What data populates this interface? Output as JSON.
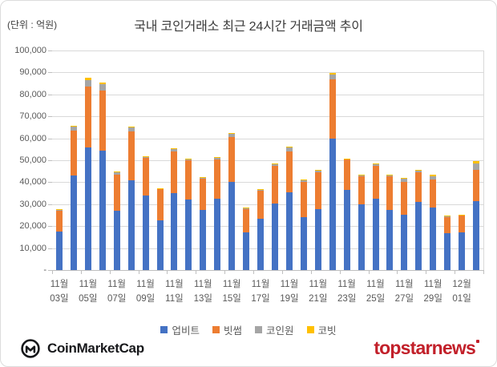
{
  "page": {
    "unit_label": "(단위 : 억원)",
    "title": "국내 코인거래소 최근 24시간 거래금액 추이"
  },
  "chart_data": {
    "type": "bar",
    "stacked": true,
    "title": "국내 코인거래소 최근 24시간 거래금액 추이",
    "unit": "억원",
    "ylim": [
      0,
      100000
    ],
    "ytick_interval": 10000,
    "ytick_labels_top_to_bottom": [
      "100,000",
      "90,000",
      "80,000",
      "70,000",
      "60,000",
      "50,000",
      "40,000",
      "30,000",
      "20,000",
      "10,000",
      "-"
    ],
    "grid": true,
    "legend_position": "bottom",
    "xtick_label_every": 2,
    "categories": [
      "11월 03일",
      "11월 04일",
      "11월 05일",
      "11월 06일",
      "11월 07일",
      "11월 08일",
      "11월 09일",
      "11월 10일",
      "11월 11일",
      "11월 12일",
      "11월 13일",
      "11월 14일",
      "11월 15일",
      "11월 16일",
      "11월 17일",
      "11월 18일",
      "11월 19일",
      "11월 20일",
      "11월 21일",
      "11월 22일",
      "11월 23일",
      "11월 24일",
      "11월 25일",
      "11월 26일",
      "11월 27일",
      "11월 28일",
      "11월 29일",
      "11월 30일",
      "12월 01일",
      "12월 02일"
    ],
    "series": [
      {
        "name": "업비트",
        "color": "#4472C4",
        "values": [
          17500,
          43000,
          55800,
          54500,
          27000,
          41000,
          33800,
          22800,
          35000,
          32000,
          27400,
          32600,
          40300,
          17000,
          23200,
          30200,
          35400,
          24100,
          27700,
          59800,
          36600,
          29900,
          32400,
          27500,
          25300,
          31100,
          28300,
          16700,
          17000,
          31400
        ]
      },
      {
        "name": "빗썸",
        "color": "#ED7D31",
        "values": [
          9600,
          20500,
          27700,
          27300,
          16500,
          22000,
          17300,
          14100,
          19000,
          18200,
          14200,
          17700,
          20400,
          10700,
          13100,
          17100,
          18600,
          16100,
          16900,
          26900,
          13700,
          12800,
          14900,
          15100,
          15000,
          13500,
          13100,
          7400,
          7700,
          14400
        ]
      },
      {
        "name": "코인원",
        "color": "#A5A5A5",
        "values": [
          400,
          1800,
          3000,
          2800,
          1000,
          2200,
          500,
          300,
          1200,
          300,
          500,
          1000,
          1600,
          500,
          300,
          1200,
          2000,
          800,
          500,
          2500,
          400,
          400,
          1200,
          700,
          1200,
          1000,
          1200,
          700,
          400,
          2700
        ]
      },
      {
        "name": "코빗",
        "color": "#FFC000",
        "values": [
          150,
          300,
          1000,
          900,
          300,
          300,
          200,
          200,
          300,
          200,
          400,
          200,
          200,
          300,
          400,
          200,
          300,
          200,
          400,
          600,
          200,
          400,
          200,
          200,
          500,
          200,
          800,
          200,
          200,
          1000
        ]
      }
    ]
  },
  "colors": {
    "gridline": "#D9D9D9",
    "axis_line": "#BFBFBF",
    "axis_text": "#595959",
    "title_text": "#3B3B3B",
    "coinmarketcap": "#17181B",
    "topstarnews_red": "#C2202A"
  },
  "footer": {
    "coinmarketcap_text": "CoinMarketCap",
    "topstarnews_text": "topstarnews"
  }
}
